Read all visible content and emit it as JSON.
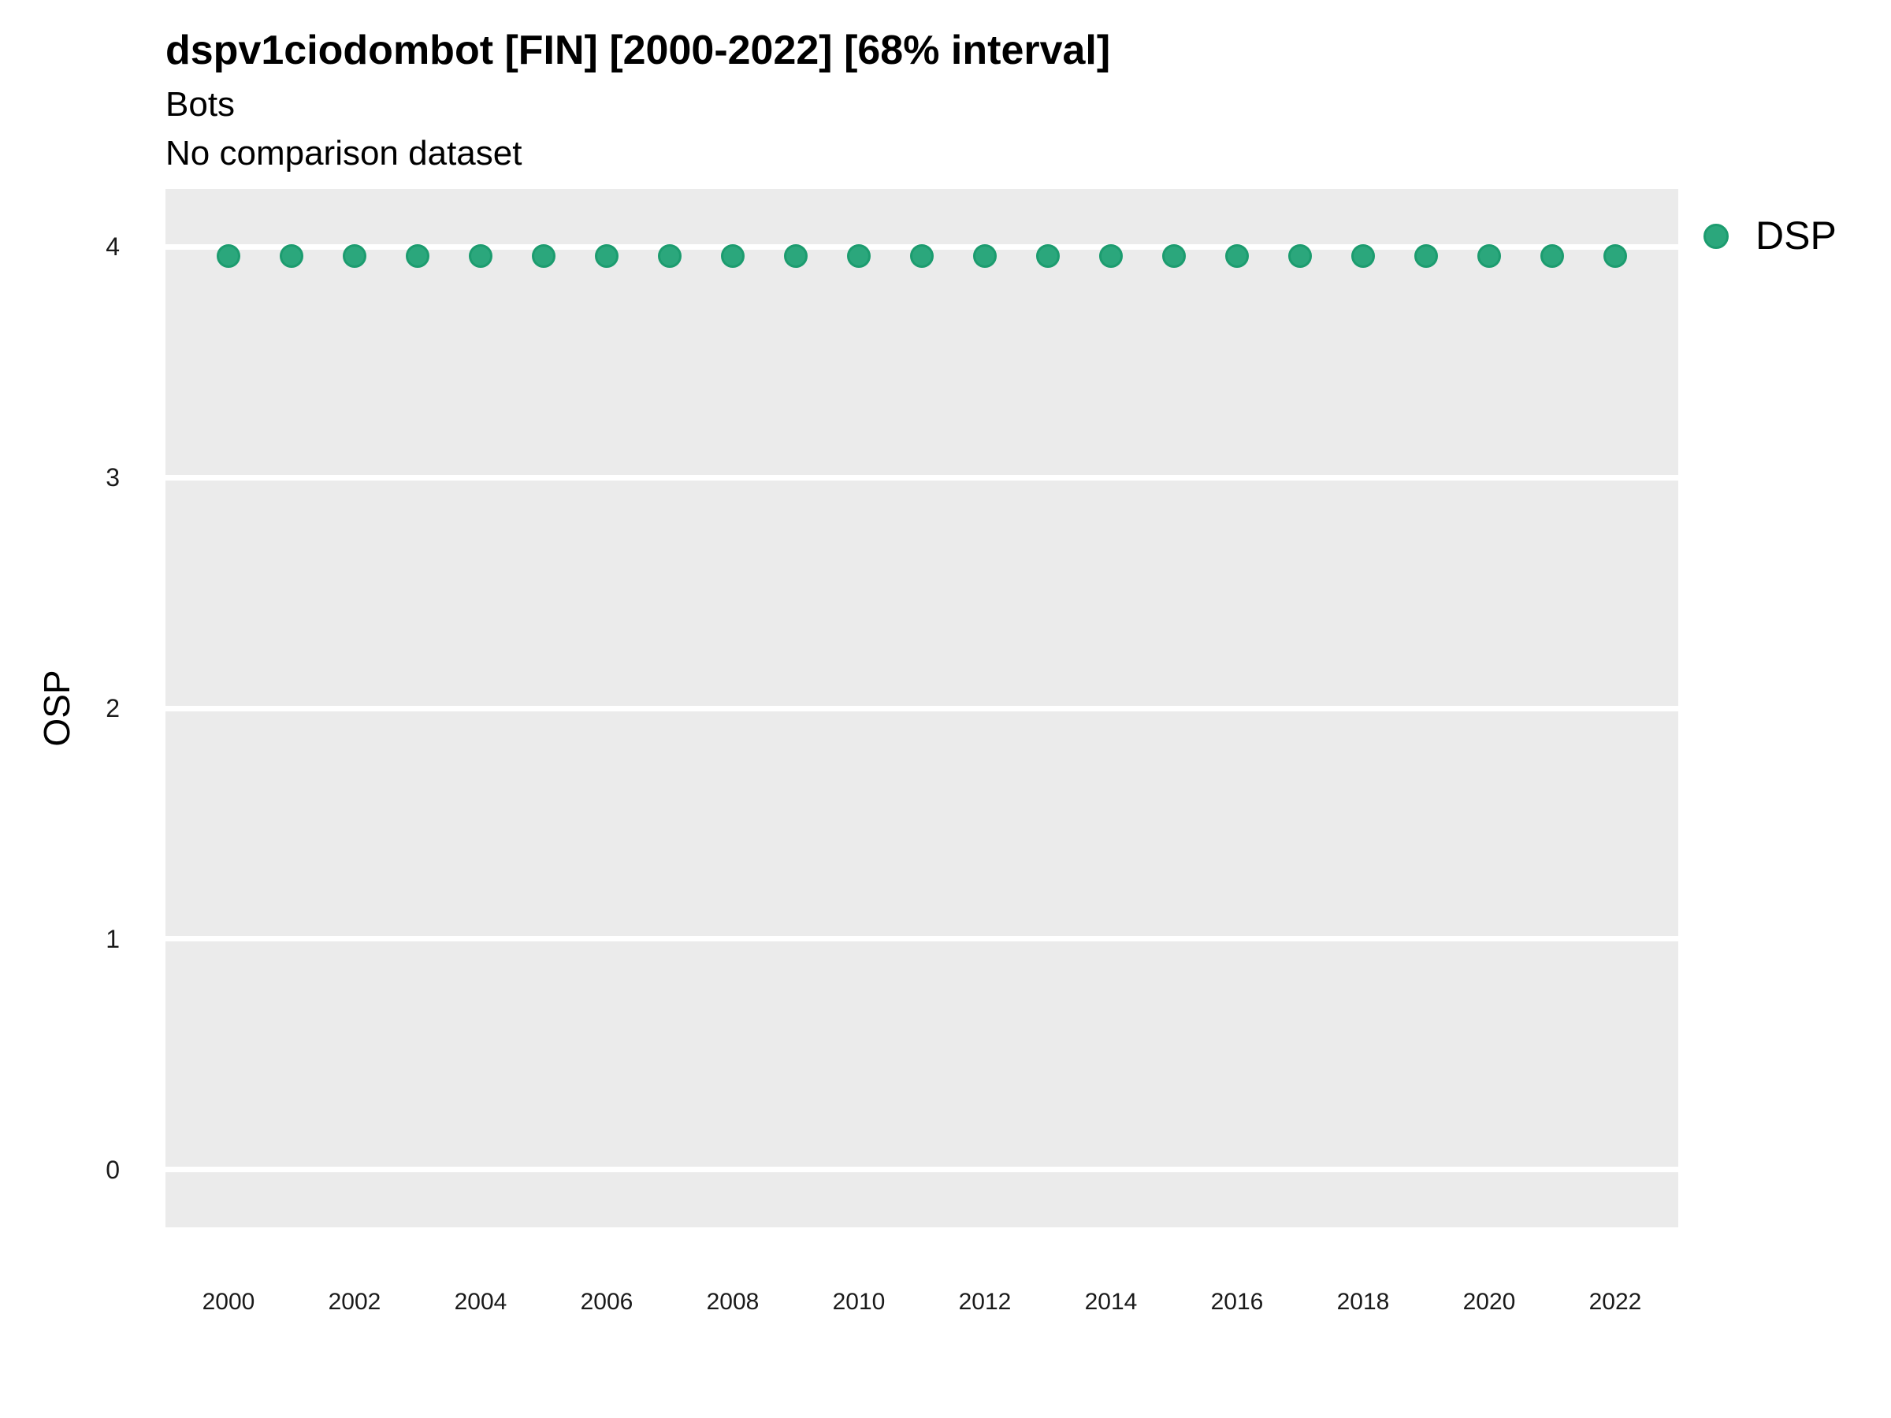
{
  "chart_data": {
    "type": "scatter",
    "title": "dspv1ciodombot [FIN] [2000-2022] [68% interval]",
    "subtitle": "Bots",
    "note": "No comparison dataset",
    "xlabel": "",
    "ylabel": "OSP",
    "x": [
      2000,
      2001,
      2002,
      2003,
      2004,
      2005,
      2006,
      2007,
      2008,
      2009,
      2010,
      2011,
      2012,
      2013,
      2014,
      2015,
      2016,
      2017,
      2018,
      2019,
      2020,
      2021,
      2022
    ],
    "series": [
      {
        "name": "DSP",
        "values": [
          3.96,
          3.96,
          3.96,
          3.96,
          3.96,
          3.96,
          3.96,
          3.96,
          3.96,
          3.96,
          3.96,
          3.96,
          3.96,
          3.96,
          3.96,
          3.96,
          3.96,
          3.96,
          3.96,
          3.96,
          3.96,
          3.96,
          3.96
        ],
        "color": "#2BA77C",
        "edge_color": "#1C9C6F"
      }
    ],
    "xlim": [
      1999,
      2023
    ],
    "ylim": [
      -0.25,
      4.25
    ],
    "xticks": [
      2000,
      2002,
      2004,
      2006,
      2008,
      2010,
      2012,
      2014,
      2016,
      2018,
      2020,
      2022
    ],
    "yticks": [
      0,
      1,
      2,
      3,
      4
    ],
    "grid": {
      "horizontal_major": true,
      "vertical": false,
      "color": "#ffffff"
    },
    "panel_bg": "#EBEBEB",
    "legend": {
      "position": "right",
      "items": [
        {
          "label": "DSP",
          "color": "#2BA77C",
          "edge_color": "#1C9C6F"
        }
      ]
    }
  }
}
